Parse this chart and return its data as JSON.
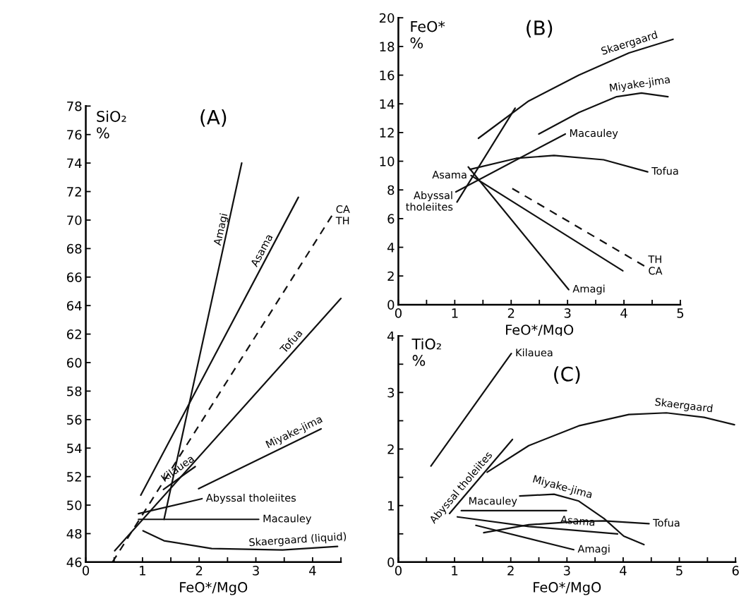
{
  "chart_data": [
    {
      "type": "line",
      "title": "(A)",
      "xlabel": "FeO*/MgO",
      "ylabel": "SiO₂\n%",
      "xlim": [
        0,
        4.5
      ],
      "ylim": [
        46,
        78
      ],
      "xticks": [
        0,
        {
          "value": 0.5,
          "label": null
        },
        1,
        {
          "value": 1.5,
          "label": null
        },
        2,
        {
          "value": 2.5,
          "label": null
        },
        3,
        {
          "value": 3.5,
          "label": null
        },
        4,
        {
          "value": 4.5,
          "label": null
        }
      ],
      "yticks": [
        46,
        48,
        50,
        52,
        54,
        56,
        58,
        60,
        62,
        64,
        66,
        68,
        70,
        72,
        74,
        76,
        78
      ],
      "grid": false,
      "legend": false,
      "marker": "none",
      "series": [
        {
          "name": "Amagi",
          "color": "#111111",
          "x": [
            1.38,
            2.75
          ],
          "values": [
            49.0,
            74.0
          ]
        },
        {
          "name": "Asama",
          "color": "#111111",
          "x": [
            0.97,
            3.75
          ],
          "values": [
            50.7,
            71.6
          ]
        },
        {
          "name": "CA\nTH",
          "color": "#111111",
          "line_style": "dashed",
          "x": [
            0.47,
            4.34
          ],
          "values": [
            46.0,
            70.3
          ]
        },
        {
          "name": "Tofua",
          "color": "#111111",
          "x": [
            0.51,
            4.5
          ],
          "values": [
            46.8,
            64.5
          ]
        },
        {
          "name": "Kilauea",
          "color": "#111111",
          "x": [
            1.37,
            1.93
          ],
          "values": [
            51.1,
            52.7
          ]
        },
        {
          "name": "Miyake-jima",
          "color": "#111111",
          "x": [
            1.99,
            4.15
          ],
          "values": [
            51.15,
            55.35
          ]
        },
        {
          "name": "Abyssal tholeiites",
          "color": "#111111",
          "x": [
            0.93,
            2.05
          ],
          "values": [
            49.4,
            50.45
          ]
        },
        {
          "name": "Macauley",
          "color": "#111111",
          "x": [
            0.93,
            3.05
          ],
          "values": [
            49.0,
            49.0
          ]
        },
        {
          "name": "Skaergaard (liquid)",
          "color": "#111111",
          "x": [
            1.01,
            1.38,
            2.22,
            3.47,
            4.44
          ],
          "values": [
            48.2,
            47.5,
            46.95,
            46.85,
            47.1
          ]
        }
      ]
    },
    {
      "type": "line",
      "title": "(B)",
      "xlabel": "FeO*/MgO",
      "ylabel": "FeO*\n%",
      "xlim": [
        0,
        5
      ],
      "ylim": [
        0,
        20
      ],
      "xticks": [
        0,
        {
          "value": 0.5,
          "label": null
        },
        1,
        {
          "value": 1.5,
          "label": null
        },
        2,
        {
          "value": 2.5,
          "label": null
        },
        3,
        {
          "value": 3.5,
          "label": null
        },
        4,
        {
          "value": 4.5,
          "label": null
        },
        5
      ],
      "yticks": [
        0,
        2,
        4,
        6,
        8,
        10,
        12,
        14,
        16,
        18,
        20
      ],
      "grid": false,
      "legend": false,
      "marker": "none",
      "series": [
        {
          "name": "Skaergaard",
          "color": "#111111",
          "x": [
            1.42,
            2.31,
            3.2,
            4.09,
            4.87
          ],
          "values": [
            11.6,
            14.2,
            16.0,
            17.55,
            18.5
          ]
        },
        {
          "name": "Miyake-jima",
          "color": "#111111",
          "x": [
            2.49,
            3.2,
            3.87,
            4.31,
            4.78
          ],
          "values": [
            11.9,
            13.4,
            14.5,
            14.75,
            14.5
          ]
        },
        {
          "name": "Macauley",
          "color": "#111111",
          "x": [
            1.02,
            2.96
          ],
          "values": [
            7.86,
            11.9
          ]
        },
        {
          "name": "Tofua",
          "color": "#111111",
          "x": [
            1.27,
            2.09,
            2.76,
            3.64,
            4.42
          ],
          "values": [
            9.43,
            10.2,
            10.4,
            10.1,
            9.26
          ]
        },
        {
          "name": "Abyssal\ntholeiites",
          "color": "#111111",
          "x": [
            1.04,
            2.07
          ],
          "values": [
            7.16,
            13.7
          ]
        },
        {
          "name": "Amagi",
          "color": "#111111",
          "x": [
            1.24,
            3.02
          ],
          "values": [
            9.6,
            1.05
          ]
        },
        {
          "name": "Asama",
          "color": "#111111",
          "x": [
            1.29,
            3.98
          ],
          "values": [
            9.0,
            2.36
          ]
        },
        {
          "name": "TH\nCA",
          "color": "#111111",
          "line_style": "dashed",
          "x": [
            2.02,
            4.36
          ],
          "values": [
            8.1,
            2.7
          ]
        }
      ]
    },
    {
      "type": "line",
      "title": "(C)",
      "xlabel": "FeO*/MgO",
      "ylabel": "TiO₂\n%",
      "xlim": [
        0,
        6
      ],
      "ylim": [
        0,
        4
      ],
      "xticks": [
        0,
        {
          "value": 0.5,
          "label": null
        },
        1,
        {
          "value": 1.5,
          "label": null
        },
        2,
        {
          "value": 2.5,
          "label": null
        },
        3,
        {
          "value": 3.5,
          "label": null
        },
        4,
        {
          "value": 4.5,
          "label": null
        },
        5,
        {
          "value": 5.5,
          "label": null
        },
        6
      ],
      "yticks": [
        0,
        {
          "value": 0.5,
          "label": null
        },
        1,
        {
          "value": 1.5,
          "label": null
        },
        2,
        {
          "value": 2.5,
          "label": null
        },
        3,
        {
          "value": 3.5,
          "label": null
        },
        4
      ],
      "grid": false,
      "legend": false,
      "marker": "none",
      "series": [
        {
          "name": "Kilauea",
          "color": "#111111",
          "x": [
            0.58,
            2.01
          ],
          "values": [
            1.7,
            3.69
          ]
        },
        {
          "name": "Abyssal tholeiites",
          "color": "#111111",
          "x": [
            0.91,
            2.03
          ],
          "values": [
            0.86,
            2.17
          ]
        },
        {
          "name": "Skaergaard",
          "color": "#111111",
          "x": [
            1.58,
            2.32,
            3.21,
            4.1,
            4.77,
            5.44,
            5.98
          ],
          "values": [
            1.59,
            2.06,
            2.41,
            2.61,
            2.64,
            2.56,
            2.43
          ]
        },
        {
          "name": "Miyake-jima",
          "color": "#111111",
          "x": [
            2.16,
            2.77,
            3.21,
            3.66,
            4.01,
            4.37
          ],
          "values": [
            1.17,
            1.2,
            1.08,
            0.77,
            0.46,
            0.31
          ]
        },
        {
          "name": "Macauley",
          "color": "#111111",
          "x": [
            1.12,
            2.99
          ],
          "values": [
            0.91,
            0.91
          ]
        },
        {
          "name": "Tofua",
          "color": "#111111",
          "x": [
            1.52,
            2.32,
            3.21,
            3.66,
            4.46
          ],
          "values": [
            0.52,
            0.66,
            0.72,
            0.73,
            0.68
          ]
        },
        {
          "name": "Asama",
          "color": "#111111",
          "x": [
            1.05,
            2.32,
            3.9
          ],
          "values": [
            0.8,
            0.63,
            0.5
          ]
        },
        {
          "name": "Amagi",
          "color": "#111111",
          "x": [
            1.38,
            3.12
          ],
          "values": [
            0.65,
            0.22
          ]
        }
      ]
    }
  ]
}
